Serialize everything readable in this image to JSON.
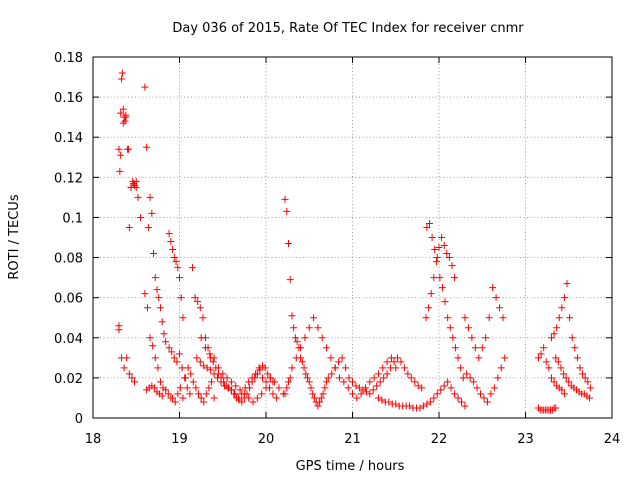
{
  "chart_data": {
    "type": "scatter",
    "title": "Day 036 of 2015, Rate Of TEC Index for receiver cnmr",
    "xlabel": "GPS time / hours",
    "ylabel": "ROTI / TECUs",
    "xlim": [
      18,
      24
    ],
    "ylim": [
      0,
      0.18
    ],
    "xticks": [
      18,
      19,
      20,
      21,
      22,
      23,
      24
    ],
    "xtick_labels": [
      "18",
      "19",
      "20",
      "21",
      "22",
      "23",
      "24"
    ],
    "yticks": [
      0,
      0.02,
      0.04,
      0.06,
      0.08,
      0.1,
      0.12,
      0.14,
      0.16,
      0.18
    ],
    "ytick_labels": [
      "0",
      "0.02",
      "0.04",
      "0.06",
      "0.08",
      "0.1",
      "0.12",
      "0.14",
      "0.16",
      "0.18"
    ],
    "grid": true,
    "marker": "plus",
    "color": "#ff0000",
    "series": [
      {
        "name": "ROTI",
        "x": [
          18.3,
          18.31,
          18.32,
          18.33,
          18.34,
          18.35,
          18.36,
          18.37,
          18.38,
          18.4,
          18.42,
          18.44,
          18.46,
          18.48,
          18.5,
          18.3,
          18.33,
          18.36,
          18.39,
          18.42,
          18.45,
          18.48,
          18.3,
          18.32,
          18.35,
          18.38,
          18.41,
          18.44,
          18.47,
          18.5,
          18.52,
          18.55,
          18.6,
          18.62,
          18.64,
          18.66,
          18.68,
          18.7,
          18.72,
          18.74,
          18.76,
          18.78,
          18.8,
          18.82,
          18.84,
          18.6,
          18.63,
          18.66,
          18.69,
          18.72,
          18.75,
          18.78,
          18.81,
          18.84,
          18.87,
          18.9,
          18.62,
          18.65,
          18.68,
          18.71,
          18.74,
          18.77,
          18.8,
          18.88,
          18.9,
          18.92,
          18.94,
          18.96,
          18.98,
          19.0,
          19.02,
          19.04,
          18.88,
          18.91,
          18.94,
          18.97,
          19.0,
          19.03,
          19.06,
          19.09,
          19.12,
          18.92,
          18.95,
          18.98,
          19.01,
          19.04,
          19.07,
          19.1,
          19.13,
          19.16,
          19.19,
          19.22,
          19.25,
          19.28,
          19.31,
          19.34,
          19.37,
          19.4,
          19.15,
          19.18,
          19.21,
          19.24,
          19.27,
          19.3,
          19.33,
          19.36,
          19.39,
          19.42,
          19.45,
          19.48,
          19.51,
          19.54,
          19.57,
          19.6,
          19.63,
          19.66,
          19.69,
          19.72,
          19.75,
          19.78,
          19.81,
          19.84,
          19.87,
          19.9,
          19.93,
          19.96,
          19.99,
          20.02,
          20.05,
          20.08,
          19.2,
          19.24,
          19.28,
          19.32,
          19.36,
          19.4,
          19.44,
          19.48,
          19.52,
          19.56,
          19.6,
          19.64,
          19.68,
          19.72,
          19.76,
          19.8,
          19.84,
          19.88,
          19.92,
          19.96,
          20.0,
          20.04,
          20.08,
          20.12,
          19.25,
          19.3,
          19.35,
          19.4,
          19.45,
          19.5,
          19.55,
          19.6,
          19.65,
          19.7,
          19.75,
          19.8,
          19.85,
          19.9,
          19.95,
          20.0,
          20.05,
          20.1,
          20.15,
          20.2,
          20.22,
          20.24,
          20.26,
          20.28,
          20.3,
          20.32,
          20.34,
          20.36,
          20.38,
          20.4,
          20.42,
          20.44,
          20.46,
          20.48,
          20.5,
          20.52,
          20.54,
          20.56,
          20.58,
          20.6,
          20.62,
          20.64,
          20.66,
          20.68,
          20.7,
          20.22,
          20.24,
          20.26,
          20.28,
          20.3,
          20.35,
          20.4,
          20.45,
          20.5,
          20.55,
          20.6,
          20.65,
          20.7,
          20.75,
          20.8,
          20.85,
          20.9,
          20.95,
          21.0,
          21.05,
          21.1,
          21.15,
          21.2,
          21.25,
          21.3,
          21.35,
          21.4,
          21.45,
          21.5,
          20.72,
          20.76,
          20.8,
          20.84,
          20.88,
          20.92,
          20.96,
          21.0,
          21.04,
          21.08,
          21.12,
          21.16,
          21.2,
          21.24,
          21.28,
          21.32,
          21.36,
          21.4,
          21.44,
          21.48,
          21.52,
          21.56,
          21.6,
          21.64,
          21.68,
          21.72,
          21.76,
          21.8,
          21.3,
          21.34,
          21.38,
          21.42,
          21.46,
          21.5,
          21.54,
          21.58,
          21.62,
          21.66,
          21.7,
          21.74,
          21.78,
          21.82,
          21.86,
          21.9,
          21.94,
          21.98,
          22.02,
          22.06,
          22.1,
          22.14,
          22.18,
          22.22,
          22.26,
          22.3,
          21.85,
          21.88,
          21.91,
          21.94,
          21.97,
          22.0,
          22.03,
          22.06,
          22.09,
          22.12,
          22.15,
          22.18,
          21.86,
          21.89,
          21.92,
          21.95,
          21.98,
          22.01,
          22.04,
          22.07,
          22.1,
          22.13,
          22.16,
          22.19,
          22.22,
          22.25,
          22.28,
          22.3,
          22.34,
          22.38,
          22.42,
          22.46,
          22.5,
          22.54,
          22.58,
          22.62,
          22.66,
          22.7,
          22.74,
          22.32,
          22.36,
          22.4,
          22.44,
          22.48,
          22.52,
          22.56,
          22.6,
          22.64,
          22.68,
          22.72,
          22.76,
          23.15,
          23.17,
          23.19,
          23.21,
          23.23,
          23.25,
          23.27,
          23.29,
          23.31,
          23.33,
          23.35,
          23.15,
          23.18,
          23.21,
          23.24,
          23.27,
          23.3,
          23.33,
          23.36,
          23.39,
          23.42,
          23.45,
          23.3,
          23.33,
          23.36,
          23.39,
          23.42,
          23.45,
          23.48,
          23.51,
          23.54,
          23.57,
          23.6,
          23.63,
          23.66,
          23.69,
          23.72,
          23.75,
          23.35,
          23.38,
          23.41,
          23.44,
          23.47,
          23.5,
          23.53,
          23.56,
          23.59,
          23.62,
          23.65,
          23.68,
          23.71,
          23.74
        ],
        "y": [
          0.046,
          0.123,
          0.131,
          0.169,
          0.172,
          0.154,
          0.15,
          0.148,
          0.151,
          0.134,
          0.095,
          0.115,
          0.118,
          0.116,
          0.115,
          0.044,
          0.03,
          0.025,
          0.03,
          0.022,
          0.02,
          0.018,
          0.134,
          0.152,
          0.147,
          0.15,
          0.134,
          0.115,
          0.117,
          0.118,
          0.11,
          0.1,
          0.165,
          0.135,
          0.095,
          0.11,
          0.102,
          0.082,
          0.07,
          0.064,
          0.06,
          0.055,
          0.048,
          0.042,
          0.038,
          0.062,
          0.055,
          0.04,
          0.036,
          0.03,
          0.025,
          0.018,
          0.015,
          0.014,
          0.012,
          0.01,
          0.014,
          0.015,
          0.016,
          0.015,
          0.013,
          0.012,
          0.011,
          0.092,
          0.088,
          0.084,
          0.08,
          0.078,
          0.075,
          0.07,
          0.06,
          0.05,
          0.035,
          0.033,
          0.03,
          0.028,
          0.032,
          0.025,
          0.02,
          0.015,
          0.012,
          0.01,
          0.008,
          0.012,
          0.015,
          0.01,
          0.02,
          0.025,
          0.022,
          0.018,
          0.015,
          0.012,
          0.01,
          0.008,
          0.012,
          0.015,
          0.018,
          0.01,
          0.075,
          0.06,
          0.058,
          0.055,
          0.05,
          0.04,
          0.035,
          0.03,
          0.028,
          0.025,
          0.022,
          0.02,
          0.018,
          0.016,
          0.015,
          0.014,
          0.012,
          0.01,
          0.009,
          0.008,
          0.01,
          0.012,
          0.015,
          0.018,
          0.02,
          0.022,
          0.024,
          0.026,
          0.025,
          0.022,
          0.02,
          0.018,
          0.03,
          0.028,
          0.026,
          0.025,
          0.024,
          0.022,
          0.02,
          0.018,
          0.016,
          0.015,
          0.014,
          0.012,
          0.01,
          0.012,
          0.015,
          0.018,
          0.02,
          0.022,
          0.025,
          0.02,
          0.018,
          0.015,
          0.012,
          0.01,
          0.04,
          0.035,
          0.032,
          0.03,
          0.025,
          0.022,
          0.02,
          0.018,
          0.016,
          0.014,
          0.012,
          0.01,
          0.008,
          0.01,
          0.012,
          0.015,
          0.02,
          0.018,
          0.015,
          0.012,
          0.109,
          0.103,
          0.087,
          0.069,
          0.051,
          0.045,
          0.04,
          0.038,
          0.035,
          0.03,
          0.028,
          0.025,
          0.022,
          0.02,
          0.018,
          0.015,
          0.012,
          0.01,
          0.008,
          0.006,
          0.008,
          0.01,
          0.012,
          0.015,
          0.018,
          0.012,
          0.015,
          0.018,
          0.02,
          0.025,
          0.03,
          0.035,
          0.04,
          0.045,
          0.05,
          0.045,
          0.04,
          0.035,
          0.03,
          0.025,
          0.02,
          0.018,
          0.015,
          0.012,
          0.01,
          0.012,
          0.015,
          0.018,
          0.02,
          0.022,
          0.025,
          0.028,
          0.03,
          0.025,
          0.02,
          0.022,
          0.025,
          0.028,
          0.03,
          0.025,
          0.02,
          0.018,
          0.016,
          0.015,
          0.014,
          0.013,
          0.012,
          0.014,
          0.016,
          0.018,
          0.02,
          0.022,
          0.025,
          0.028,
          0.03,
          0.028,
          0.025,
          0.022,
          0.02,
          0.018,
          0.016,
          0.015,
          0.01,
          0.009,
          0.008,
          0.008,
          0.007,
          0.007,
          0.006,
          0.006,
          0.006,
          0.006,
          0.005,
          0.005,
          0.005,
          0.006,
          0.007,
          0.008,
          0.01,
          0.012,
          0.014,
          0.016,
          0.018,
          0.015,
          0.012,
          0.01,
          0.008,
          0.006,
          0.05,
          0.055,
          0.062,
          0.07,
          0.078,
          0.085,
          0.09,
          0.086,
          0.082,
          0.08,
          0.076,
          0.07,
          0.095,
          0.097,
          0.09,
          0.084,
          0.08,
          0.07,
          0.065,
          0.058,
          0.05,
          0.045,
          0.04,
          0.035,
          0.03,
          0.025,
          0.02,
          0.05,
          0.045,
          0.04,
          0.035,
          0.03,
          0.035,
          0.04,
          0.05,
          0.065,
          0.06,
          0.055,
          0.05,
          0.022,
          0.02,
          0.018,
          0.015,
          0.012,
          0.01,
          0.008,
          0.012,
          0.015,
          0.02,
          0.025,
          0.03,
          0.005,
          0.004,
          0.004,
          0.004,
          0.004,
          0.004,
          0.004,
          0.004,
          0.004,
          0.005,
          0.005,
          0.03,
          0.032,
          0.035,
          0.028,
          0.025,
          0.02,
          0.018,
          0.016,
          0.015,
          0.014,
          0.012,
          0.04,
          0.042,
          0.045,
          0.05,
          0.055,
          0.06,
          0.067,
          0.05,
          0.04,
          0.035,
          0.03,
          0.025,
          0.022,
          0.02,
          0.018,
          0.015,
          0.03,
          0.028,
          0.025,
          0.022,
          0.02,
          0.018,
          0.016,
          0.015,
          0.014,
          0.013,
          0.012,
          0.012,
          0.011,
          0.01
        ]
      }
    ]
  }
}
